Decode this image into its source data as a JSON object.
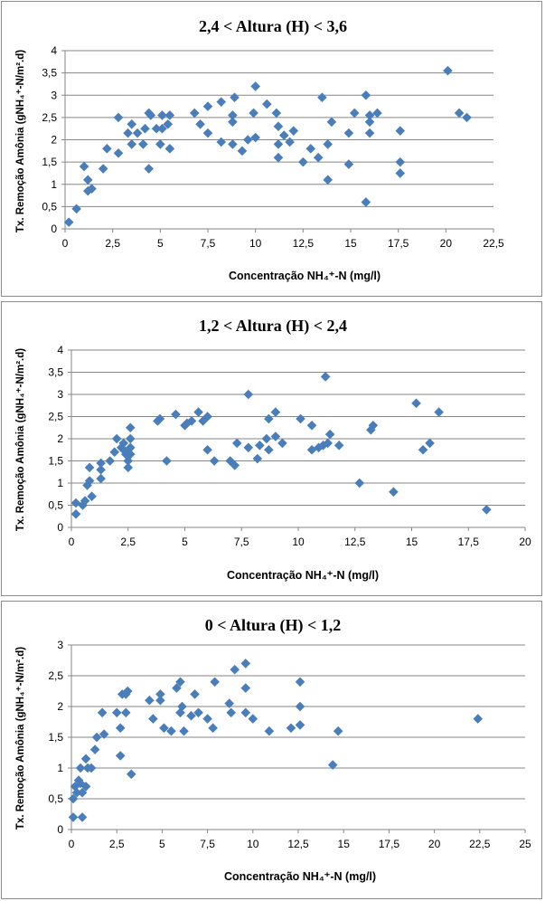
{
  "marker_color": "#4A7EBB",
  "chart_data": [
    {
      "type": "scatter",
      "title": "2,4 < Altura (H) < 3,6",
      "xlabel": "Concentração NH₄⁺-N (mg/l)",
      "ylabel": "Tx. Remoção Amônia (gNH₄⁺-N/m².d)",
      "xlim": [
        0,
        22.5
      ],
      "ylim": [
        0,
        4
      ],
      "xticks": [
        "0",
        "2,5",
        "5",
        "7,5",
        "10",
        "12,5",
        "15",
        "17,5",
        "20",
        "22,5"
      ],
      "yticks": [
        "0",
        "0,5",
        "1",
        "1,5",
        "2",
        "2,5",
        "3",
        "3,5",
        "4"
      ],
      "grid": true,
      "points": [
        [
          0.2,
          0.15
        ],
        [
          0.6,
          0.45
        ],
        [
          1.0,
          1.4
        ],
        [
          1.2,
          1.1
        ],
        [
          1.2,
          0.85
        ],
        [
          1.4,
          0.9
        ],
        [
          2.0,
          1.35
        ],
        [
          2.2,
          1.8
        ],
        [
          2.8,
          2.5
        ],
        [
          2.8,
          1.7
        ],
        [
          3.3,
          2.15
        ],
        [
          3.5,
          1.9
        ],
        [
          3.5,
          2.35
        ],
        [
          3.8,
          2.15
        ],
        [
          4.1,
          1.9
        ],
        [
          4.2,
          2.25
        ],
        [
          4.4,
          2.6
        ],
        [
          4.5,
          2.55
        ],
        [
          4.4,
          1.35
        ],
        [
          4.8,
          2.25
        ],
        [
          5.0,
          1.9
        ],
        [
          5.1,
          2.55
        ],
        [
          5.1,
          2.25
        ],
        [
          5.4,
          2.35
        ],
        [
          5.5,
          2.55
        ],
        [
          5.5,
          1.8
        ],
        [
          6.8,
          2.6
        ],
        [
          7.1,
          2.35
        ],
        [
          7.5,
          2.75
        ],
        [
          7.5,
          2.15
        ],
        [
          8.2,
          2.85
        ],
        [
          8.2,
          1.95
        ],
        [
          8.8,
          2.55
        ],
        [
          8.8,
          2.4
        ],
        [
          8.8,
          1.9
        ],
        [
          8.9,
          2.95
        ],
        [
          9.3,
          1.75
        ],
        [
          9.6,
          2.0
        ],
        [
          9.9,
          2.6
        ],
        [
          10.0,
          3.2
        ],
        [
          10.0,
          2.05
        ],
        [
          10.6,
          2.8
        ],
        [
          11.1,
          2.6
        ],
        [
          11.2,
          2.3
        ],
        [
          11.2,
          1.9
        ],
        [
          11.2,
          1.6
        ],
        [
          11.5,
          2.1
        ],
        [
          11.8,
          1.95
        ],
        [
          12.0,
          2.2
        ],
        [
          12.5,
          1.5
        ],
        [
          12.9,
          1.8
        ],
        [
          13.3,
          1.6
        ],
        [
          13.5,
          2.95
        ],
        [
          13.8,
          1.9
        ],
        [
          13.8,
          1.1
        ],
        [
          14.0,
          2.4
        ],
        [
          14.9,
          2.15
        ],
        [
          14.9,
          1.45
        ],
        [
          15.2,
          2.6
        ],
        [
          15.8,
          3.0
        ],
        [
          15.8,
          0.6
        ],
        [
          16.0,
          2.55
        ],
        [
          16.0,
          2.4
        ],
        [
          16.0,
          2.15
        ],
        [
          16.4,
          2.6
        ],
        [
          17.6,
          2.2
        ],
        [
          17.6,
          1.5
        ],
        [
          17.6,
          1.25
        ],
        [
          20.1,
          3.55
        ],
        [
          20.7,
          2.6
        ],
        [
          21.1,
          2.5
        ]
      ]
    },
    {
      "type": "scatter",
      "title": "1,2 < Altura (H) < 2,4",
      "xlabel": "Concentração NH₄⁺-N (mg/l)",
      "ylabel": "Tx. Remoção Amônia (gNH₄⁺-N/m².d)",
      "xlim": [
        0,
        20
      ],
      "ylim": [
        0,
        4
      ],
      "xticks": [
        "0",
        "2,5",
        "5",
        "7,5",
        "10",
        "12,5",
        "15",
        "17,5",
        "20"
      ],
      "yticks": [
        "0",
        "0,5",
        "1",
        "1,5",
        "2",
        "2,5",
        "3",
        "3,5",
        "4"
      ],
      "grid": true,
      "points": [
        [
          0.2,
          0.3
        ],
        [
          0.2,
          0.55
        ],
        [
          0.5,
          0.5
        ],
        [
          0.6,
          0.6
        ],
        [
          0.7,
          0.95
        ],
        [
          0.8,
          1.05
        ],
        [
          0.8,
          1.35
        ],
        [
          0.9,
          0.7
        ],
        [
          1.3,
          1.45
        ],
        [
          1.3,
          1.1
        ],
        [
          1.3,
          1.3
        ],
        [
          1.7,
          1.5
        ],
        [
          1.9,
          1.7
        ],
        [
          2.0,
          2.0
        ],
        [
          2.2,
          1.8
        ],
        [
          2.3,
          1.9
        ],
        [
          2.3,
          1.75
        ],
        [
          2.4,
          1.65
        ],
        [
          2.5,
          1.35
        ],
        [
          2.5,
          1.5
        ],
        [
          2.5,
          1.7
        ],
        [
          2.6,
          2.0
        ],
        [
          2.6,
          1.8
        ],
        [
          2.6,
          1.65
        ],
        [
          2.6,
          2.25
        ],
        [
          3.8,
          2.4
        ],
        [
          3.9,
          2.45
        ],
        [
          4.2,
          1.5
        ],
        [
          4.6,
          2.55
        ],
        [
          5.0,
          2.3
        ],
        [
          5.1,
          2.35
        ],
        [
          5.3,
          2.4
        ],
        [
          5.6,
          2.6
        ],
        [
          5.8,
          2.4
        ],
        [
          6.0,
          2.5
        ],
        [
          6.0,
          1.75
        ],
        [
          6.3,
          1.5
        ],
        [
          7.0,
          1.5
        ],
        [
          7.2,
          1.4
        ],
        [
          7.3,
          1.9
        ],
        [
          7.8,
          3.0
        ],
        [
          7.8,
          1.8
        ],
        [
          8.2,
          1.55
        ],
        [
          8.3,
          1.85
        ],
        [
          8.6,
          2.0
        ],
        [
          8.7,
          2.45
        ],
        [
          8.7,
          1.75
        ],
        [
          9.0,
          2.6
        ],
        [
          9.0,
          2.05
        ],
        [
          9.3,
          1.9
        ],
        [
          10.1,
          2.45
        ],
        [
          10.6,
          2.3
        ],
        [
          10.6,
          1.75
        ],
        [
          10.9,
          1.8
        ],
        [
          11.1,
          1.85
        ],
        [
          11.2,
          3.4
        ],
        [
          11.3,
          1.9
        ],
        [
          11.4,
          2.1
        ],
        [
          11.8,
          1.85
        ],
        [
          12.7,
          1.0
        ],
        [
          13.2,
          2.2
        ],
        [
          13.3,
          2.3
        ],
        [
          14.2,
          0.8
        ],
        [
          15.2,
          2.8
        ],
        [
          15.5,
          1.75
        ],
        [
          15.8,
          1.9
        ],
        [
          16.2,
          2.6
        ],
        [
          18.3,
          0.4
        ]
      ]
    },
    {
      "type": "scatter",
      "title": "0 < Altura (H) < 1,2",
      "xlabel": "Concentração NH₄⁺-N (mg/l)",
      "ylabel": "Tx. Remoção Amônia (gNH₄⁺-N/m².d)",
      "xlim": [
        0,
        25
      ],
      "ylim": [
        0,
        3
      ],
      "xticks": [
        "0",
        "2,5",
        "5",
        "7,5",
        "10",
        "12,5",
        "15",
        "17,5",
        "20",
        "22,5",
        "25"
      ],
      "yticks": [
        "0",
        "0,5",
        "1",
        "1,5",
        "2",
        "2,5",
        "3"
      ],
      "grid": true,
      "points": [
        [
          0.1,
          0.2
        ],
        [
          0.1,
          0.5
        ],
        [
          0.2,
          0.7
        ],
        [
          0.3,
          0.6
        ],
        [
          0.4,
          0.8
        ],
        [
          0.5,
          1.0
        ],
        [
          0.5,
          0.75
        ],
        [
          0.6,
          0.6
        ],
        [
          0.6,
          0.2
        ],
        [
          0.8,
          0.7
        ],
        [
          0.8,
          1.15
        ],
        [
          0.9,
          1.0
        ],
        [
          1.1,
          1.0
        ],
        [
          1.3,
          1.3
        ],
        [
          1.4,
          1.5
        ],
        [
          1.7,
          1.9
        ],
        [
          1.8,
          1.55
        ],
        [
          2.5,
          1.9
        ],
        [
          2.7,
          1.2
        ],
        [
          2.7,
          1.65
        ],
        [
          2.8,
          2.2
        ],
        [
          3.0,
          2.2
        ],
        [
          3.0,
          1.9
        ],
        [
          3.1,
          2.25
        ],
        [
          3.3,
          0.9
        ],
        [
          4.3,
          2.1
        ],
        [
          4.5,
          1.8
        ],
        [
          4.9,
          2.2
        ],
        [
          4.9,
          2.1
        ],
        [
          5.1,
          1.65
        ],
        [
          5.5,
          1.6
        ],
        [
          5.8,
          2.3
        ],
        [
          6.0,
          2.4
        ],
        [
          6.0,
          1.9
        ],
        [
          6.1,
          2.0
        ],
        [
          6.2,
          1.6
        ],
        [
          6.6,
          1.85
        ],
        [
          6.8,
          2.2
        ],
        [
          7.0,
          1.9
        ],
        [
          7.5,
          1.8
        ],
        [
          7.8,
          1.65
        ],
        [
          7.9,
          2.4
        ],
        [
          8.7,
          2.05
        ],
        [
          8.8,
          1.9
        ],
        [
          9.0,
          2.6
        ],
        [
          9.6,
          2.7
        ],
        [
          9.6,
          2.3
        ],
        [
          9.6,
          1.9
        ],
        [
          10.0,
          1.8
        ],
        [
          10.9,
          1.6
        ],
        [
          12.1,
          1.65
        ],
        [
          12.6,
          2.4
        ],
        [
          12.6,
          2.0
        ],
        [
          12.6,
          1.7
        ],
        [
          14.4,
          1.05
        ],
        [
          14.7,
          1.6
        ],
        [
          22.4,
          1.8
        ]
      ]
    }
  ]
}
